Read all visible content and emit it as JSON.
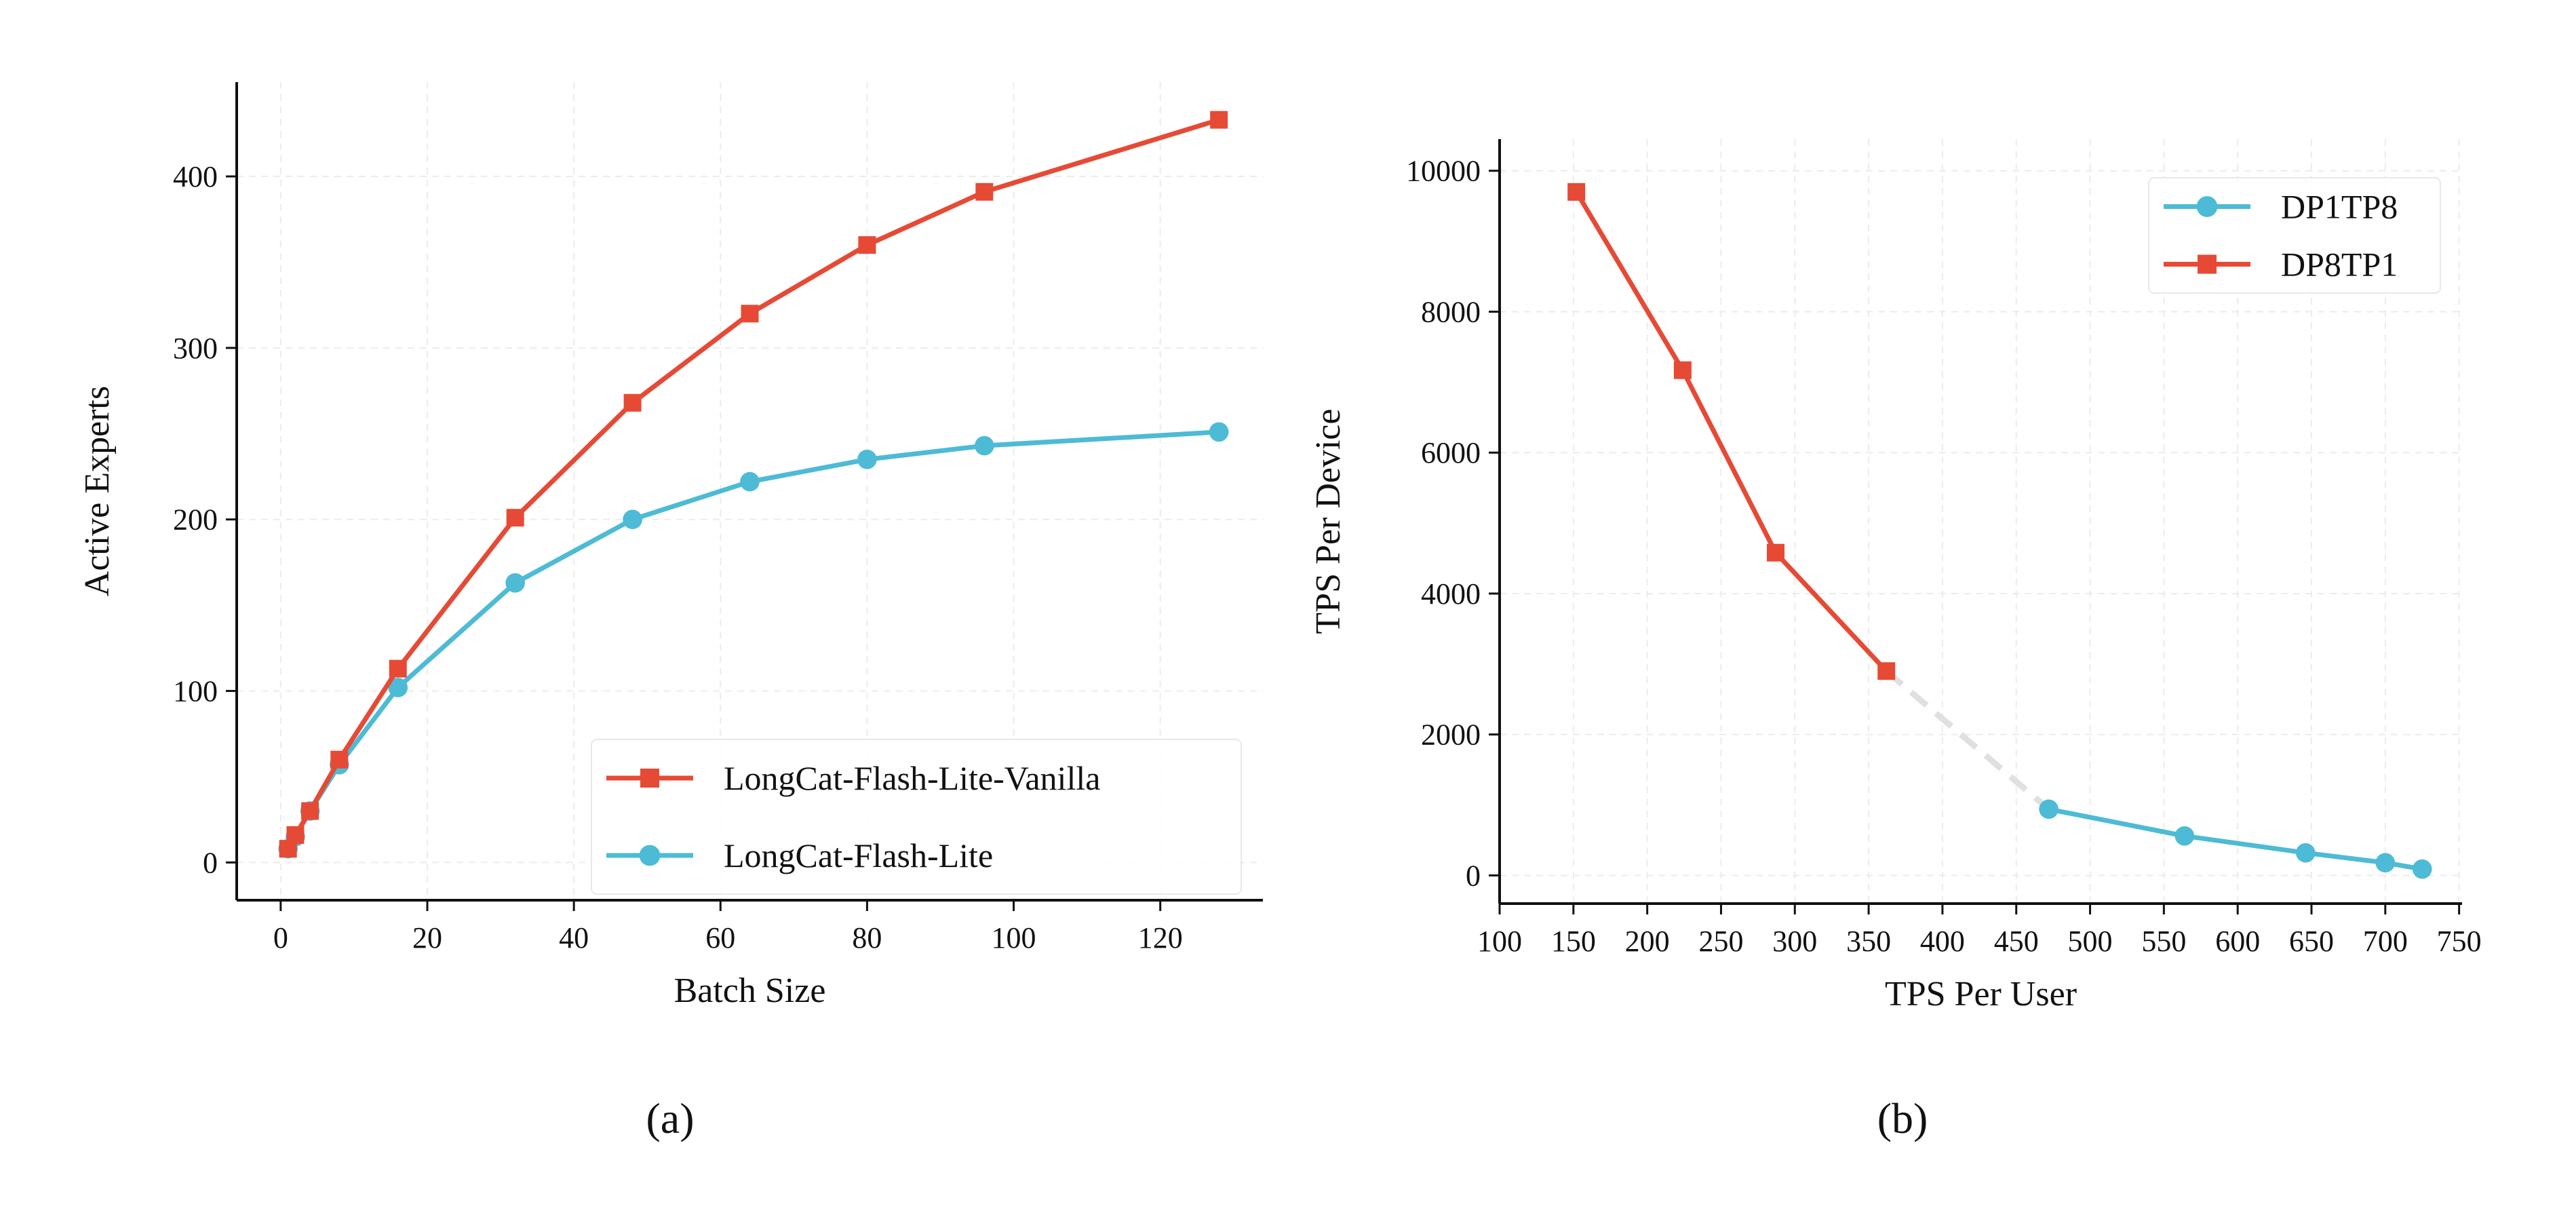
{
  "chart_data": [
    {
      "type": "line",
      "caption": "(a)",
      "xlabel": "Batch Size",
      "ylabel": "Active Experts",
      "xlim": [
        -6,
        134
      ],
      "ylim": [
        -22,
        455
      ],
      "xticks": [
        0,
        20,
        40,
        60,
        80,
        100,
        120
      ],
      "yticks": [
        0,
        100,
        200,
        300,
        400
      ],
      "grid": true,
      "legend_position": "bottom-right",
      "x": [
        1,
        2,
        4,
        8,
        16,
        32,
        48,
        64,
        80,
        96,
        128
      ],
      "series": [
        {
          "name": "LongCat-Flash-Lite-Vanilla",
          "color": "#e64a35",
          "marker": "square",
          "values": [
            8,
            16,
            30,
            60,
            113,
            201,
            268,
            320,
            360,
            391,
            433
          ]
        },
        {
          "name": "LongCat-Flash-Lite",
          "color": "#4dbbd5",
          "marker": "circle",
          "values": [
            8,
            15,
            30,
            57,
            102,
            163,
            200,
            222,
            235,
            243,
            251
          ]
        }
      ]
    },
    {
      "type": "line",
      "caption": "(b)",
      "xlabel": "TPS Per User",
      "ylabel": "TPS Per Device",
      "xlim": [
        100,
        752
      ],
      "ylim": [
        -400,
        10450
      ],
      "xticks": [
        100,
        150,
        200,
        250,
        300,
        350,
        400,
        450,
        500,
        550,
        600,
        650,
        700,
        750
      ],
      "yticks": [
        0,
        2000,
        4000,
        6000,
        8000,
        10000
      ],
      "grid": true,
      "legend_position": "top-right",
      "series": [
        {
          "name": "DP1TP8",
          "color": "#4dbbd5",
          "marker": "circle",
          "x": [
            472,
            564,
            646,
            700,
            725
          ],
          "values": [
            940,
            560,
            320,
            180,
            90
          ]
        },
        {
          "name": "DP8TP1",
          "color": "#e64a35",
          "marker": "square",
          "x": [
            152,
            224,
            287,
            362
          ],
          "values": [
            9700,
            7170,
            4580,
            2900
          ]
        }
      ],
      "connector": {
        "color": "#e0e0e0",
        "style": "dashed",
        "x": [
          362,
          472
        ],
        "values": [
          2900,
          940
        ]
      }
    }
  ]
}
